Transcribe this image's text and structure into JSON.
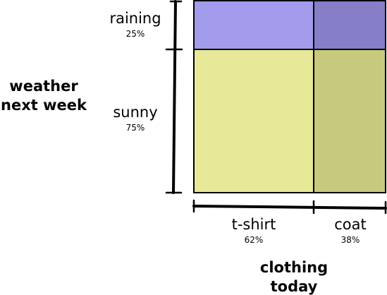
{
  "y_axis": {
    "title": [
      "weather",
      "next week"
    ],
    "categories": [
      {
        "label": "raining",
        "share": "25%"
      },
      {
        "label": "sunny",
        "share": "75%"
      }
    ]
  },
  "x_axis": {
    "title": [
      "clothing",
      "today"
    ],
    "categories": [
      {
        "label": "t-shirt",
        "share": "62%"
      },
      {
        "label": "coat",
        "share": "38%"
      }
    ]
  },
  "colors": {
    "raining_tshirt": "#a39bec",
    "raining_coat": "#867ec8",
    "sunny_tshirt": "#e8e899",
    "sunny_coat": "#c7c97d"
  }
}
